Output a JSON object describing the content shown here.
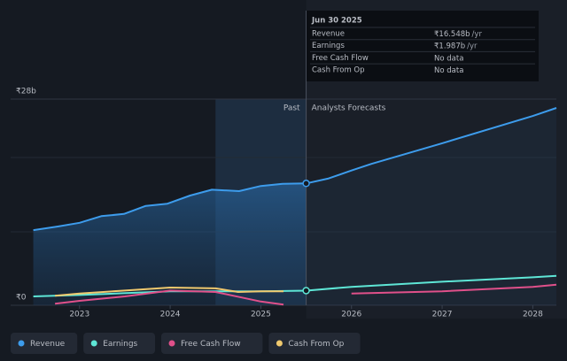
{
  "chart_data": {
    "type": "line",
    "xlim": [
      2022.24,
      2028.26
    ],
    "xticks": [
      2023,
      2024,
      2025,
      2026,
      2027,
      2028
    ],
    "ylim": [
      0,
      28
    ],
    "yticks": [
      {
        "value": 0,
        "label": "₹0"
      },
      {
        "value": 28,
        "label": "₹28b"
      }
    ],
    "grid": true,
    "divider": 2025.5,
    "highlight_start": 2024.5,
    "past_label": "Past",
    "forecast_label": "Analysts Forecasts",
    "series": [
      {
        "name": "Revenue",
        "color": "#3d9cec",
        "x": [
          2022.49,
          2022.76,
          2023.0,
          2023.24,
          2023.49,
          2023.73,
          2023.97,
          2024.22,
          2024.46,
          2024.76,
          2025.0,
          2025.24,
          2025.5,
          2025.74,
          2026.0,
          2026.22,
          2027.0,
          2028.0,
          2028.26
        ],
        "values": [
          10.2,
          10.7,
          11.2,
          12.1,
          12.4,
          13.5,
          13.8,
          14.9,
          15.7,
          15.5,
          16.2,
          16.5,
          16.548,
          17.2,
          18.3,
          19.2,
          22.0,
          25.7,
          26.8
        ]
      },
      {
        "name": "Earnings",
        "color": "#5ee6d6",
        "x": [
          2022.49,
          2023.0,
          2024.0,
          2025.0,
          2025.5,
          2026.0,
          2027.0,
          2028.0,
          2028.26
        ],
        "values": [
          1.2,
          1.4,
          1.9,
          1.9,
          1.987,
          2.5,
          3.2,
          3.8,
          4.0
        ]
      },
      {
        "name": "Free Cash Flow",
        "color": "#e0508a",
        "x": [
          2022.73,
          2023.0,
          2023.5,
          2024.0,
          2024.5,
          2025.0,
          2025.25,
          2025.5,
          2026.0,
          2027.0,
          2028.0,
          2028.26
        ],
        "values": [
          0.2,
          0.6,
          1.2,
          2.0,
          1.8,
          0.5,
          0.1,
          null,
          1.6,
          1.9,
          2.5,
          2.8
        ]
      },
      {
        "name": "Cash From Op",
        "color": "#f0c96e",
        "x": [
          2022.73,
          2023.0,
          2023.5,
          2024.0,
          2024.5,
          2024.75,
          2025.0,
          2025.25
        ],
        "values": [
          1.3,
          1.6,
          2.0,
          2.4,
          2.3,
          1.8,
          1.9,
          1.9
        ]
      }
    ],
    "tooltip": {
      "date": "Jun 30 2025",
      "rows": [
        {
          "label": "Revenue",
          "value": "₹16.548b",
          "unit": "/yr"
        },
        {
          "label": "Earnings",
          "value": "₹1.987b",
          "unit": "/yr"
        },
        {
          "label": "Free Cash Flow",
          "value": "No data"
        },
        {
          "label": "Cash From Op",
          "value": "No data"
        }
      ]
    }
  }
}
